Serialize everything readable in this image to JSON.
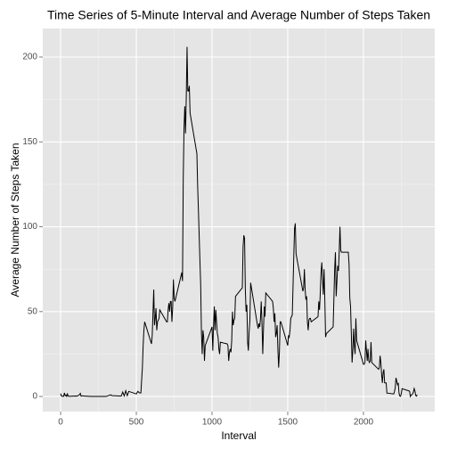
{
  "chart_data": {
    "type": "line",
    "title": "Time Series of 5-Minute Interval and Average Number of Steps Taken",
    "x_label": "Interval",
    "y_label": "Average Number of Steps Taken",
    "color": "#000000",
    "grid": true,
    "xlim": [
      -118,
      2471
    ],
    "ylim": [
      -8.9,
      216.8
    ],
    "xticks": [
      0,
      500,
      1000,
      1500,
      2000
    ],
    "yticks": [
      0,
      50,
      100,
      150,
      200
    ],
    "x_minor_ticks": [
      250,
      750,
      1250,
      1750,
      2250
    ],
    "y_minor_ticks": [
      25,
      75,
      125,
      175
    ],
    "x": [
      0,
      5,
      10,
      15,
      20,
      25,
      30,
      35,
      40,
      45,
      50,
      55,
      100,
      110,
      125,
      130,
      135,
      145,
      150,
      200,
      230,
      300,
      330,
      340,
      400,
      410,
      420,
      430,
      440,
      450,
      500,
      510,
      520,
      530,
      540,
      545,
      550,
      555,
      600,
      605,
      610,
      615,
      620,
      625,
      630,
      635,
      640,
      645,
      650,
      655,
      700,
      705,
      710,
      715,
      720,
      725,
      730,
      735,
      740,
      745,
      750,
      755,
      800,
      805,
      810,
      815,
      820,
      825,
      830,
      835,
      840,
      845,
      850,
      855,
      900,
      905,
      910,
      915,
      920,
      925,
      930,
      935,
      940,
      945,
      950,
      955,
      1000,
      1005,
      1010,
      1015,
      1020,
      1025,
      1030,
      1035,
      1040,
      1045,
      1050,
      1055,
      1100,
      1105,
      1110,
      1115,
      1120,
      1125,
      1130,
      1135,
      1140,
      1145,
      1150,
      1155,
      1200,
      1205,
      1210,
      1215,
      1220,
      1225,
      1230,
      1235,
      1240,
      1245,
      1250,
      1255,
      1300,
      1305,
      1310,
      1315,
      1320,
      1325,
      1330,
      1335,
      1340,
      1345,
      1350,
      1355,
      1400,
      1405,
      1410,
      1415,
      1420,
      1425,
      1430,
      1435,
      1440,
      1445,
      1450,
      1455,
      1500,
      1505,
      1510,
      1515,
      1520,
      1525,
      1530,
      1535,
      1540,
      1545,
      1550,
      1555,
      1600,
      1605,
      1610,
      1615,
      1620,
      1625,
      1630,
      1635,
      1640,
      1645,
      1650,
      1655,
      1700,
      1705,
      1710,
      1715,
      1720,
      1725,
      1730,
      1735,
      1740,
      1745,
      1750,
      1755,
      1800,
      1805,
      1810,
      1815,
      1820,
      1825,
      1830,
      1835,
      1840,
      1845,
      1850,
      1855,
      1900,
      1905,
      1910,
      1915,
      1920,
      1925,
      1930,
      1935,
      1940,
      1945,
      1950,
      1955,
      2000,
      2005,
      2010,
      2015,
      2020,
      2025,
      2030,
      2035,
      2040,
      2045,
      2050,
      2055,
      2100,
      2105,
      2110,
      2115,
      2120,
      2125,
      2130,
      2135,
      2140,
      2145,
      2150,
      2155,
      2200,
      2205,
      2210,
      2215,
      2220,
      2225,
      2230,
      2235,
      2240,
      2245,
      2250,
      2255,
      2300,
      2305,
      2310,
      2315,
      2320,
      2325,
      2330,
      2335,
      2340,
      2345,
      2350,
      2355
    ],
    "values": [
      1.7,
      0.3,
      0.1,
      0.2,
      0.1,
      2.1,
      0.5,
      0.9,
      0,
      1.5,
      0.3,
      0.1,
      0.3,
      0.2,
      1.1,
      1.8,
      0.2,
      0.4,
      0.3,
      0,
      0,
      0,
      1.0,
      0.5,
      0.2,
      2.6,
      0.3,
      3.4,
      0.5,
      3.0,
      1.5,
      3.0,
      2.2,
      2.1,
      17,
      30,
      39,
      44,
      31,
      36,
      49,
      63,
      42,
      46,
      52,
      39,
      44,
      45,
      46,
      51,
      44,
      44,
      51,
      55,
      50,
      56,
      56,
      44,
      52,
      69,
      58,
      56,
      73,
      68,
      129,
      158,
      171,
      155,
      177,
      206,
      180,
      180,
      183,
      167,
      143,
      124,
      110,
      95,
      80,
      66,
      38,
      25,
      39,
      35,
      21,
      30,
      41,
      27,
      42,
      53,
      39,
      51,
      44,
      37,
      35,
      28,
      25,
      32,
      31,
      30,
      21,
      26,
      28,
      26,
      33,
      50,
      42,
      45,
      46,
      59,
      64,
      88,
      95,
      93,
      63,
      50,
      54,
      32,
      27,
      38,
      45,
      67,
      42,
      40,
      43,
      41,
      46,
      56,
      43,
      25,
      40,
      53,
      47,
      61,
      56,
      52,
      44,
      49,
      35,
      37,
      42,
      28,
      17,
      26,
      44,
      44,
      30,
      36,
      35,
      39,
      46,
      47,
      48,
      65,
      83,
      99,
      102,
      84,
      62,
      64,
      75,
      63,
      57,
      59,
      44,
      39,
      45,
      46,
      46,
      44,
      47,
      56,
      51,
      61,
      73,
      79,
      69,
      60,
      75,
      57,
      35,
      37,
      41,
      58,
      75,
      85,
      59,
      68,
      77,
      74,
      85,
      100,
      86,
      85,
      85,
      78,
      58,
      53,
      37,
      20,
      27,
      40,
      30,
      25,
      46,
      33,
      19,
      19,
      20,
      33,
      27,
      21,
      28,
      21,
      20,
      21,
      32,
      20,
      16,
      17,
      24,
      20,
      13,
      8,
      14,
      16,
      8,
      8,
      8,
      2,
      1.5,
      3,
      5,
      11,
      9,
      7,
      8,
      2,
      0.3,
      0.1,
      1.6,
      4.6,
      3.3,
      3,
      0,
      0.8,
      1,
      1.6,
      2.6,
      4.7,
      3.3,
      0.6,
      0.2,
      1.1
    ]
  }
}
